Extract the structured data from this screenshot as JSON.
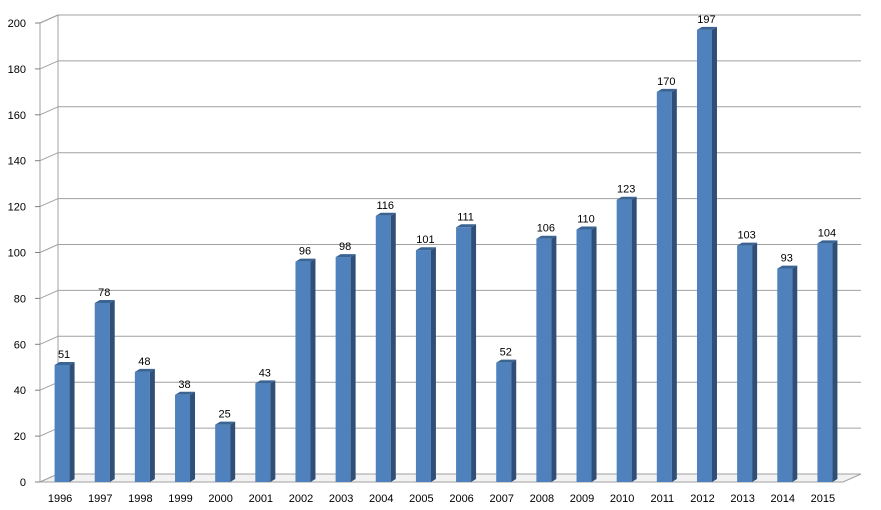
{
  "chart_data": {
    "type": "bar",
    "title": "",
    "xlabel": "",
    "ylabel": "",
    "categories": [
      "1996",
      "1997",
      "1998",
      "1999",
      "2000",
      "2001",
      "2002",
      "2003",
      "2004",
      "2005",
      "2006",
      "2007",
      "2008",
      "2009",
      "2010",
      "2011",
      "2012",
      "2013",
      "2014",
      "2015"
    ],
    "values": [
      51,
      78,
      48,
      38,
      25,
      43,
      96,
      98,
      116,
      101,
      111,
      52,
      106,
      110,
      123,
      170,
      197,
      103,
      93,
      104
    ],
    "ylim": [
      0,
      200
    ],
    "yticks": [
      "0",
      "20",
      "40",
      "60",
      "80",
      "100",
      "120",
      "140",
      "160",
      "180",
      "200"
    ],
    "data_labels": [
      "51",
      "78",
      "48",
      "38",
      "25",
      "43",
      "96",
      "98",
      "116",
      "101",
      "111",
      "52",
      "106",
      "110",
      "123",
      "170",
      "197",
      "103",
      "93",
      "104"
    ],
    "grid": true,
    "style": "3d",
    "colors": {
      "bar_front": "#4f81bd",
      "bar_side": "#2f4f78",
      "bar_top": "#3a6494",
      "grid": "#a0a0a0"
    }
  }
}
